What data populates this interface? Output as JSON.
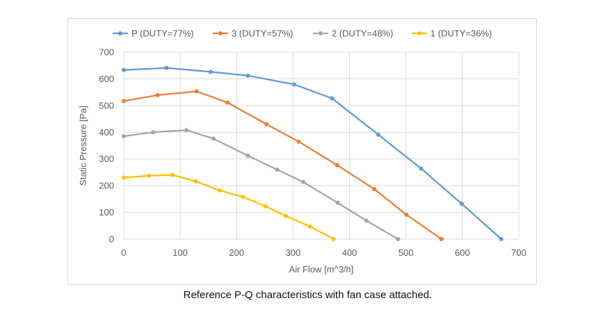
{
  "chart_data": {
    "type": "line",
    "xlabel": "Air Flow [m^3/h]",
    "ylabel": "Static Pressure [Pa]",
    "xlim": [
      0,
      700
    ],
    "ylim": [
      0,
      700
    ],
    "x_ticks": [
      0,
      100,
      200,
      300,
      400,
      500,
      600,
      700
    ],
    "y_ticks": [
      0,
      100,
      200,
      300,
      400,
      500,
      600,
      700
    ],
    "grid": true,
    "legend_position": "top",
    "series": [
      {
        "name": "P (DUTY=77%)",
        "color": "#5b9bd5",
        "points": [
          [
            0,
            633
          ],
          [
            76,
            641
          ],
          [
            154,
            626
          ],
          [
            220,
            612
          ],
          [
            302,
            579
          ],
          [
            369,
            527
          ],
          [
            451,
            391
          ],
          [
            527,
            264
          ],
          [
            599,
            132
          ],
          [
            669,
            0
          ]
        ]
      },
      {
        "name": "3 (DUTY=57%)",
        "color": "#ed7d31",
        "points": [
          [
            0,
            517
          ],
          [
            60,
            539
          ],
          [
            129,
            553
          ],
          [
            184,
            511
          ],
          [
            253,
            430
          ],
          [
            310,
            365
          ],
          [
            378,
            277
          ],
          [
            444,
            187
          ],
          [
            501,
            91
          ],
          [
            563,
            0
          ]
        ]
      },
      {
        "name": "2 (DUTY=48%)",
        "color": "#a5a5a5",
        "points": [
          [
            0,
            385
          ],
          [
            52,
            400
          ],
          [
            111,
            408
          ],
          [
            159,
            376
          ],
          [
            220,
            312
          ],
          [
            272,
            260
          ],
          [
            318,
            214
          ],
          [
            379,
            136
          ],
          [
            430,
            69
          ],
          [
            486,
            0
          ]
        ]
      },
      {
        "name": "1 (DUTY=36%)",
        "color": "#ffc000",
        "points": [
          [
            0,
            230
          ],
          [
            44,
            237
          ],
          [
            86,
            240
          ],
          [
            128,
            216
          ],
          [
            170,
            182
          ],
          [
            211,
            158
          ],
          [
            251,
            123
          ],
          [
            287,
            87
          ],
          [
            330,
            47
          ],
          [
            372,
            0
          ]
        ]
      }
    ]
  },
  "caption": "Reference P-Q characteristics with fan case attached."
}
